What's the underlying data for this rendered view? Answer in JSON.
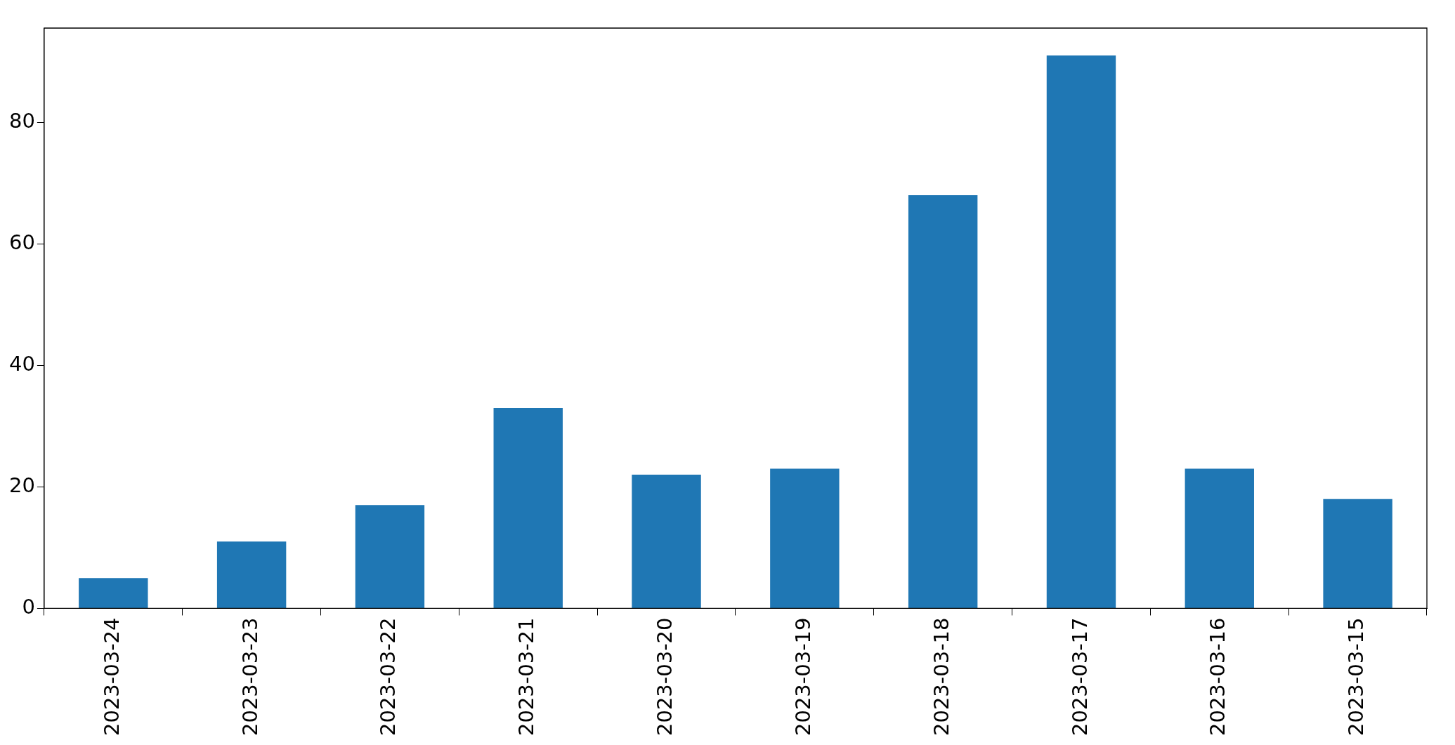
{
  "chart_data": {
    "type": "bar",
    "categories": [
      "2023-03-24",
      "2023-03-23",
      "2023-03-22",
      "2023-03-21",
      "2023-03-20",
      "2023-03-19",
      "2023-03-18",
      "2023-03-17",
      "2023-03-16",
      "2023-03-15"
    ],
    "values": [
      5,
      11,
      17,
      33,
      22,
      23,
      68,
      91,
      23,
      18
    ],
    "color": "#1f77b4",
    "ylim": [
      0,
      95.5
    ],
    "yticks": [
      0,
      20,
      40,
      60,
      80
    ],
    "grid": false,
    "legend": false
  }
}
